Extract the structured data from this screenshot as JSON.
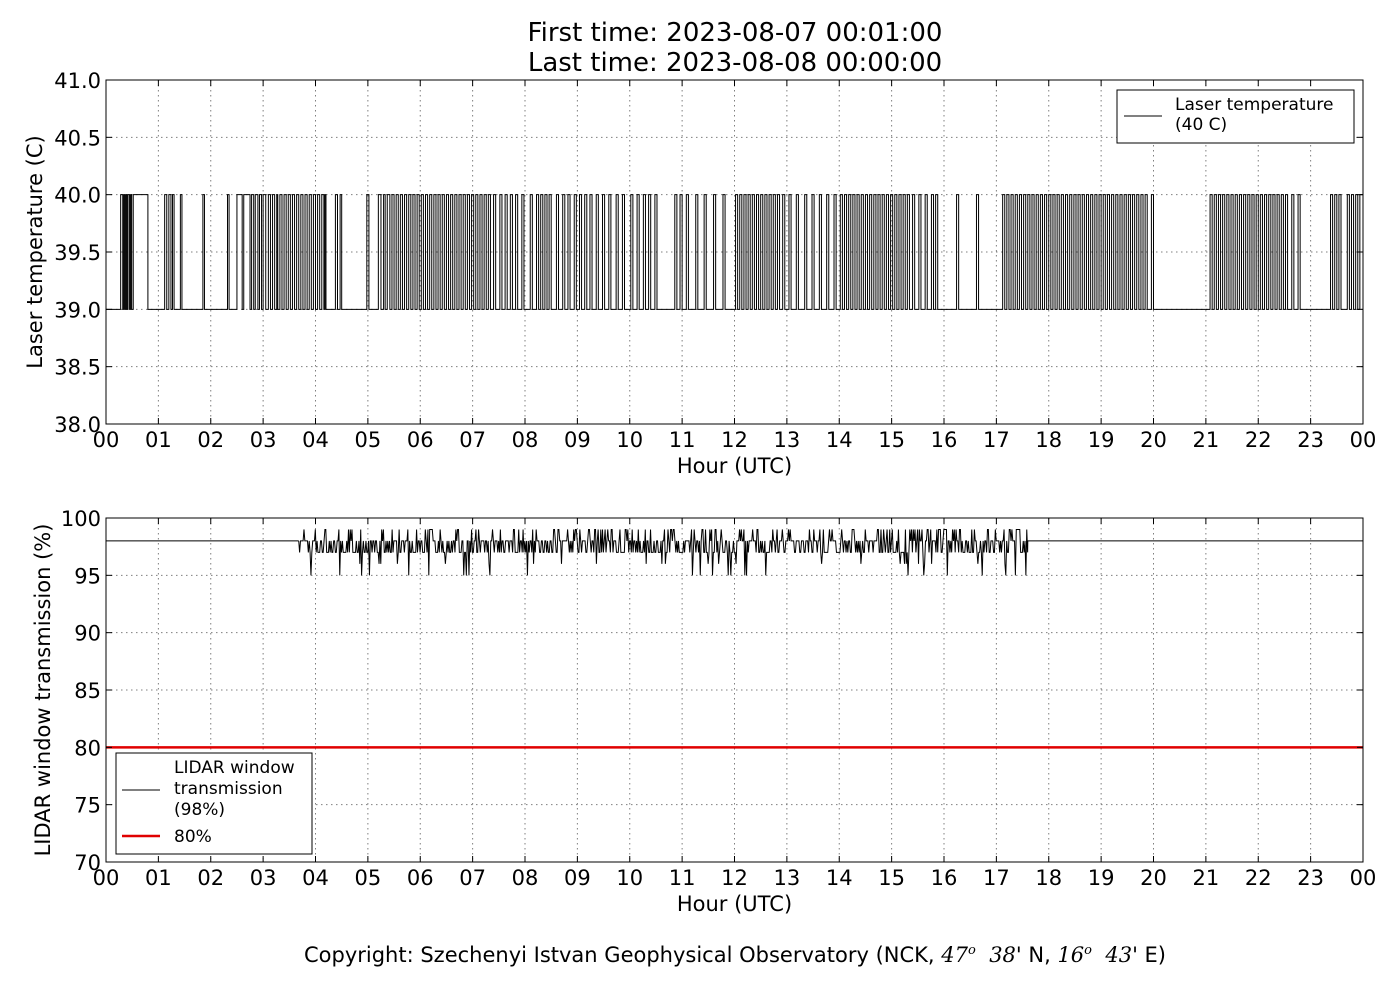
{
  "title": {
    "line1": "First time: 2023-08-07 00:01:00",
    "line2": "Last time: 2023-08-08 00:00:00"
  },
  "copyright": {
    "prefix": "Copyright: Szechenyi Istvan Geophysical Observatory (NCK, ",
    "lat_deg": "47",
    "lat_min": "38",
    "lat_hemi": "' N, ",
    "lon_deg": "16",
    "lon_min": "43",
    "lon_hemi": "' E)",
    "degree_mark": "o"
  },
  "colors": {
    "series": "#000000",
    "threshold": "#e00000",
    "grid": "#7f7f7f"
  },
  "chart_data": [
    {
      "type": "line",
      "xlabel": "Hour (UTC)",
      "ylabel": "Laser temperature (C)",
      "xlim": [
        0,
        24
      ],
      "ylim": [
        38.0,
        41.0
      ],
      "x_ticks": [
        0,
        1,
        2,
        3,
        4,
        5,
        6,
        7,
        8,
        9,
        10,
        11,
        12,
        13,
        14,
        15,
        16,
        17,
        18,
        19,
        20,
        21,
        22,
        23,
        24
      ],
      "x_tick_labels": [
        "00",
        "01",
        "02",
        "03",
        "04",
        "05",
        "06",
        "07",
        "08",
        "09",
        "10",
        "11",
        "12",
        "13",
        "14",
        "15",
        "16",
        "17",
        "18",
        "19",
        "20",
        "21",
        "22",
        "23",
        "00"
      ],
      "y_ticks": [
        38.0,
        38.5,
        39.0,
        39.5,
        40.0,
        40.5,
        41.0
      ],
      "y_tick_labels": [
        "38.0",
        "38.5",
        "39.0",
        "39.5",
        "40.0",
        "40.5",
        "41.0"
      ],
      "grid": true,
      "legend_position": "top-right",
      "series": [
        {
          "name": "Laser temperature\n(40 C)",
          "legend_lines": [
            "Laser temperature",
            "(40 C)"
          ],
          "color": "#000000",
          "base_value": 39.0,
          "alt_value": 40.0,
          "high_intervals": [
            [
              0.28,
              0.32
            ],
            [
              0.34,
              0.36
            ],
            [
              0.38,
              0.4
            ],
            [
              0.42,
              0.45
            ],
            [
              0.47,
              0.49
            ],
            [
              0.52,
              0.8
            ],
            [
              1.12,
              1.16
            ],
            [
              1.2,
              1.24
            ],
            [
              1.27,
              1.3
            ],
            [
              1.42,
              1.45
            ],
            [
              1.85,
              1.88
            ],
            [
              2.32,
              2.35
            ],
            [
              2.5,
              2.6
            ],
            [
              2.63,
              2.75
            ],
            [
              2.78,
              2.82
            ],
            [
              2.85,
              2.9
            ],
            [
              2.93,
              2.97
            ],
            [
              3.0,
              3.05
            ],
            [
              3.1,
              3.14
            ],
            [
              3.18,
              3.22
            ],
            [
              3.26,
              3.28
            ],
            [
              3.32,
              3.36
            ],
            [
              3.4,
              3.44
            ],
            [
              3.48,
              3.52
            ],
            [
              3.56,
              3.6
            ],
            [
              3.64,
              3.68
            ],
            [
              3.72,
              3.76
            ],
            [
              3.8,
              3.84
            ],
            [
              3.88,
              3.92
            ],
            [
              3.96,
              4.0
            ],
            [
              4.04,
              4.08
            ],
            [
              4.12,
              4.16
            ],
            [
              4.18,
              4.2
            ],
            [
              4.38,
              4.42
            ],
            [
              4.47,
              4.5
            ],
            [
              4.98,
              5.02
            ],
            [
              5.2,
              5.25
            ],
            [
              5.3,
              5.33
            ],
            [
              5.37,
              5.42
            ],
            [
              5.46,
              5.5
            ],
            [
              5.54,
              5.58
            ],
            [
              5.62,
              5.66
            ],
            [
              5.7,
              5.74
            ],
            [
              5.78,
              5.82
            ],
            [
              5.86,
              5.9
            ],
            [
              5.94,
              5.98
            ],
            [
              6.02,
              6.06
            ],
            [
              6.1,
              6.14
            ],
            [
              6.18,
              6.22
            ],
            [
              6.26,
              6.3
            ],
            [
              6.34,
              6.38
            ],
            [
              6.42,
              6.46
            ],
            [
              6.5,
              6.54
            ],
            [
              6.58,
              6.62
            ],
            [
              6.66,
              6.7
            ],
            [
              6.74,
              6.78
            ],
            [
              6.82,
              6.86
            ],
            [
              6.9,
              6.94
            ],
            [
              6.98,
              7.02
            ],
            [
              7.06,
              7.1
            ],
            [
              7.14,
              7.18
            ],
            [
              7.22,
              7.26
            ],
            [
              7.3,
              7.34
            ],
            [
              7.4,
              7.44
            ],
            [
              7.52,
              7.56
            ],
            [
              7.62,
              7.66
            ],
            [
              7.72,
              7.76
            ],
            [
              7.82,
              7.86
            ],
            [
              7.94,
              7.98
            ],
            [
              8.1,
              8.14
            ],
            [
              8.22,
              8.26
            ],
            [
              8.3,
              8.34
            ],
            [
              8.38,
              8.42
            ],
            [
              8.46,
              8.5
            ],
            [
              8.6,
              8.64
            ],
            [
              8.72,
              8.76
            ],
            [
              8.82,
              8.86
            ],
            [
              8.94,
              8.98
            ],
            [
              9.04,
              9.08
            ],
            [
              9.14,
              9.18
            ],
            [
              9.24,
              9.28
            ],
            [
              9.36,
              9.4
            ],
            [
              9.48,
              9.52
            ],
            [
              9.6,
              9.64
            ],
            [
              9.74,
              9.78
            ],
            [
              9.86,
              9.9
            ],
            [
              10.02,
              10.06
            ],
            [
              10.14,
              10.18
            ],
            [
              10.26,
              10.3
            ],
            [
              10.36,
              10.4
            ],
            [
              10.48,
              10.52
            ],
            [
              10.86,
              10.9
            ],
            [
              10.96,
              11.0
            ],
            [
              11.08,
              11.12
            ],
            [
              11.26,
              11.3
            ],
            [
              11.42,
              11.46
            ],
            [
              11.6,
              11.64
            ],
            [
              11.78,
              11.82
            ],
            [
              12.02,
              12.06
            ],
            [
              12.1,
              12.14
            ],
            [
              12.18,
              12.22
            ],
            [
              12.26,
              12.3
            ],
            [
              12.34,
              12.38
            ],
            [
              12.42,
              12.46
            ],
            [
              12.5,
              12.54
            ],
            [
              12.58,
              12.62
            ],
            [
              12.66,
              12.7
            ],
            [
              12.74,
              12.78
            ],
            [
              12.82,
              12.86
            ],
            [
              12.92,
              12.96
            ],
            [
              13.04,
              13.08
            ],
            [
              13.18,
              13.22
            ],
            [
              13.34,
              13.38
            ],
            [
              13.48,
              13.52
            ],
            [
              13.62,
              13.66
            ],
            [
              13.76,
              13.8
            ],
            [
              13.9,
              13.94
            ],
            [
              14.02,
              14.06
            ],
            [
              14.1,
              14.14
            ],
            [
              14.18,
              14.22
            ],
            [
              14.26,
              14.3
            ],
            [
              14.34,
              14.38
            ],
            [
              14.42,
              14.46
            ],
            [
              14.5,
              14.54
            ],
            [
              14.58,
              14.62
            ],
            [
              14.66,
              14.7
            ],
            [
              14.74,
              14.78
            ],
            [
              14.82,
              14.86
            ],
            [
              14.9,
              14.94
            ],
            [
              14.98,
              15.02
            ],
            [
              15.06,
              15.1
            ],
            [
              15.14,
              15.18
            ],
            [
              15.22,
              15.26
            ],
            [
              15.3,
              15.34
            ],
            [
              15.4,
              15.44
            ],
            [
              15.52,
              15.56
            ],
            [
              15.64,
              15.68
            ],
            [
              15.76,
              15.8
            ],
            [
              15.84,
              15.88
            ],
            [
              16.24,
              16.28
            ],
            [
              16.62,
              16.66
            ],
            [
              17.12,
              17.16
            ],
            [
              17.2,
              17.24
            ],
            [
              17.28,
              17.32
            ],
            [
              17.36,
              17.4
            ],
            [
              17.44,
              17.48
            ],
            [
              17.52,
              17.56
            ],
            [
              17.6,
              17.64
            ],
            [
              17.68,
              17.72
            ],
            [
              17.76,
              17.8
            ],
            [
              17.84,
              17.88
            ],
            [
              17.92,
              17.96
            ],
            [
              18.0,
              18.04
            ],
            [
              18.08,
              18.12
            ],
            [
              18.16,
              18.2
            ],
            [
              18.24,
              18.28
            ],
            [
              18.32,
              18.36
            ],
            [
              18.4,
              18.44
            ],
            [
              18.48,
              18.52
            ],
            [
              18.56,
              18.6
            ],
            [
              18.64,
              18.68
            ],
            [
              18.72,
              18.76
            ],
            [
              18.8,
              18.84
            ],
            [
              18.88,
              18.92
            ],
            [
              18.96,
              19.0
            ],
            [
              19.04,
              19.08
            ],
            [
              19.12,
              19.16
            ],
            [
              19.2,
              19.24
            ],
            [
              19.28,
              19.32
            ],
            [
              19.36,
              19.4
            ],
            [
              19.44,
              19.48
            ],
            [
              19.52,
              19.56
            ],
            [
              19.6,
              19.64
            ],
            [
              19.68,
              19.72
            ],
            [
              19.76,
              19.8
            ],
            [
              19.84,
              19.88
            ],
            [
              19.96,
              20.0
            ],
            [
              21.08,
              21.12
            ],
            [
              21.16,
              21.2
            ],
            [
              21.24,
              21.28
            ],
            [
              21.32,
              21.36
            ],
            [
              21.4,
              21.44
            ],
            [
              21.48,
              21.52
            ],
            [
              21.56,
              21.6
            ],
            [
              21.64,
              21.68
            ],
            [
              21.72,
              21.76
            ],
            [
              21.8,
              21.84
            ],
            [
              21.88,
              21.92
            ],
            [
              21.96,
              22.0
            ],
            [
              22.04,
              22.08
            ],
            [
              22.12,
              22.16
            ],
            [
              22.2,
              22.24
            ],
            [
              22.28,
              22.32
            ],
            [
              22.36,
              22.4
            ],
            [
              22.44,
              22.48
            ],
            [
              22.52,
              22.56
            ],
            [
              22.64,
              22.68
            ],
            [
              22.76,
              22.8
            ],
            [
              23.38,
              23.42
            ],
            [
              23.46,
              23.5
            ],
            [
              23.54,
              23.58
            ],
            [
              23.7,
              23.74
            ],
            [
              23.78,
              23.82
            ],
            [
              23.86,
              23.9
            ],
            [
              23.94,
              24.0
            ]
          ]
        }
      ]
    },
    {
      "type": "line",
      "xlabel": "Hour (UTC)",
      "ylabel": "LIDAR window transmission (%)",
      "xlim": [
        0,
        24
      ],
      "ylim": [
        70,
        100
      ],
      "x_ticks": [
        0,
        1,
        2,
        3,
        4,
        5,
        6,
        7,
        8,
        9,
        10,
        11,
        12,
        13,
        14,
        15,
        16,
        17,
        18,
        19,
        20,
        21,
        22,
        23,
        24
      ],
      "x_tick_labels": [
        "00",
        "01",
        "02",
        "03",
        "04",
        "05",
        "06",
        "07",
        "08",
        "09",
        "10",
        "11",
        "12",
        "13",
        "14",
        "15",
        "16",
        "17",
        "18",
        "19",
        "20",
        "21",
        "22",
        "23",
        "00"
      ],
      "y_ticks": [
        70,
        75,
        80,
        85,
        90,
        95,
        100
      ],
      "y_tick_labels": [
        "70",
        "75",
        "80",
        "85",
        "90",
        "95",
        "100"
      ],
      "grid": true,
      "legend_position": "lower-left",
      "series": [
        {
          "name": "LIDAR window\ntransmission\n(98%)",
          "legend_lines": [
            "LIDAR window",
            "transmission",
            "(98%)"
          ],
          "color": "#000000",
          "baseline": 98,
          "noisy_range": [
            3.68,
            17.6
          ],
          "noisy_min": 95,
          "noisy_max": 99
        },
        {
          "name": "80%",
          "legend_lines": [
            "80%"
          ],
          "color": "#e00000",
          "constant": 80
        }
      ]
    }
  ]
}
